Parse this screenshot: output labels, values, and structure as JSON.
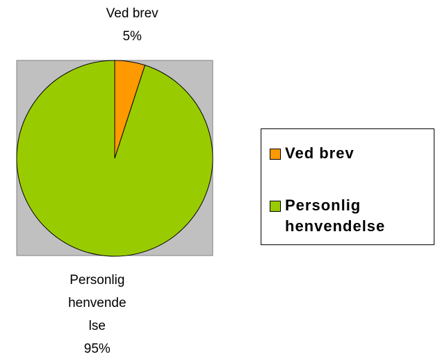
{
  "chart_data": {
    "type": "pie",
    "categories": [
      "Ved brev",
      "Personlig henvendelse"
    ],
    "values": [
      5,
      95
    ],
    "value_labels": [
      "5%",
      "95%"
    ],
    "colors": [
      "#ff9900",
      "#99cc00"
    ],
    "legend": "right"
  }
}
